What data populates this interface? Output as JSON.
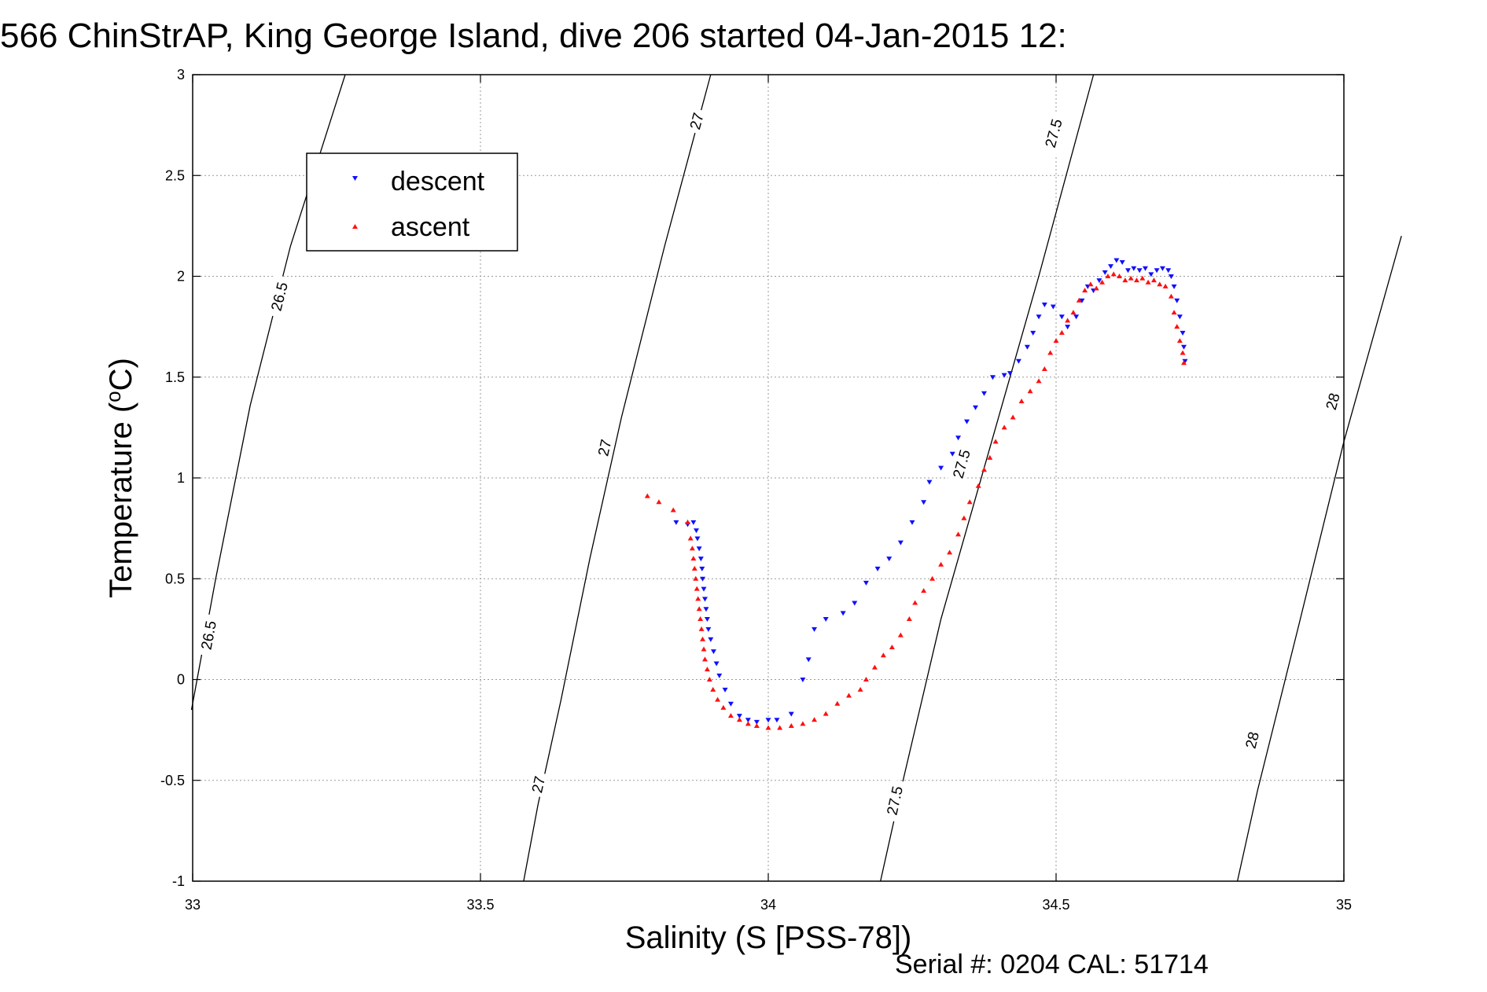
{
  "chart_data": {
    "type": "scatter",
    "title": "566 ChinStrAP, King George Island, dive 206 started 04-Jan-2015 12:",
    "xlabel": "Salinity (S [PSS-78])",
    "ylabel_prefix": "Temperature (",
    "ylabel_degree": "o",
    "ylabel_suffix": "C)",
    "xlim": [
      33,
      35
    ],
    "ylim": [
      -1,
      3
    ],
    "xticks": [
      33,
      33.5,
      34,
      34.5,
      35
    ],
    "xtick_labels": [
      "33",
      "33.5",
      "34",
      "34.5",
      "35"
    ],
    "yticks": [
      -1,
      -0.5,
      0,
      0.5,
      1,
      1.5,
      2,
      2.5,
      3
    ],
    "ytick_labels": [
      "-1",
      "-0.5",
      "0",
      "0.5",
      "1",
      "1.5",
      "2",
      "2.5",
      "3"
    ],
    "grid": true,
    "legend_position": "top-left",
    "colors": {
      "descent": "#1010ff",
      "ascent": "#ff1010",
      "isopycnal": "#000000"
    },
    "isopycnals": [
      {
        "sigma": 26.5,
        "points": [
          [
            32.998,
            -0.15
          ],
          [
            33.04,
            0.5
          ],
          [
            33.1,
            1.36
          ],
          [
            33.17,
            2.15
          ],
          [
            33.265,
            3.0
          ]
        ],
        "labels": [
          {
            "label": "26.5",
            "x": 33.027,
            "y": 0.22
          },
          {
            "label": "26.5",
            "x": 33.15,
            "y": 1.9
          }
        ]
      },
      {
        "sigma": 27,
        "points": [
          [
            33.575,
            -1.0
          ],
          [
            33.6,
            -0.62
          ],
          [
            33.64,
            -0.1
          ],
          [
            33.69,
            0.6
          ],
          [
            33.745,
            1.3
          ],
          [
            33.82,
            2.15
          ],
          [
            33.9,
            3.0
          ]
        ],
        "labels": [
          {
            "label": "27",
            "x": 33.6,
            "y": -0.52
          },
          {
            "label": "27",
            "x": 33.715,
            "y": 1.15
          },
          {
            "label": "27",
            "x": 33.875,
            "y": 2.77
          }
        ]
      },
      {
        "sigma": 27.5,
        "points": [
          [
            34.195,
            -1.0
          ],
          [
            34.23,
            -0.55
          ],
          [
            34.3,
            0.3
          ],
          [
            34.38,
            1.1
          ],
          [
            34.47,
            2.0
          ],
          [
            34.565,
            3.0
          ]
        ],
        "labels": [
          {
            "label": "27.5",
            "x": 34.219,
            "y": -0.6
          },
          {
            "label": "27.5",
            "x": 34.335,
            "y": 1.07
          },
          {
            "label": "27.5",
            "x": 34.495,
            "y": 2.71
          }
        ]
      },
      {
        "sigma": 28,
        "points": [
          [
            34.815,
            -1.0
          ],
          [
            34.85,
            -0.55
          ],
          [
            34.92,
            0.25
          ],
          [
            35.0,
            1.18
          ],
          [
            35.1,
            2.2
          ]
        ],
        "labels": [
          {
            "label": "28",
            "x": 34.84,
            "y": -0.3
          },
          {
            "label": "28",
            "x": 34.98,
            "y": 1.38
          }
        ]
      }
    ],
    "series": [
      {
        "name": "descent",
        "marker": "triangle-down",
        "points": [
          [
            33.84,
            0.78
          ],
          [
            33.86,
            0.77
          ],
          [
            33.87,
            0.78
          ],
          [
            33.875,
            0.74
          ],
          [
            33.877,
            0.7
          ],
          [
            33.88,
            0.65
          ],
          [
            33.883,
            0.6
          ],
          [
            33.885,
            0.55
          ],
          [
            33.886,
            0.5
          ],
          [
            33.888,
            0.45
          ],
          [
            33.89,
            0.4
          ],
          [
            33.892,
            0.35
          ],
          [
            33.894,
            0.3
          ],
          [
            33.896,
            0.25
          ],
          [
            33.9,
            0.2
          ],
          [
            33.905,
            0.14
          ],
          [
            33.91,
            0.08
          ],
          [
            33.915,
            0.02
          ],
          [
            33.925,
            -0.05
          ],
          [
            33.935,
            -0.12
          ],
          [
            33.95,
            -0.18
          ],
          [
            33.965,
            -0.2
          ],
          [
            33.98,
            -0.21
          ],
          [
            34.0,
            -0.2
          ],
          [
            34.015,
            -0.2
          ],
          [
            34.04,
            -0.17
          ],
          [
            34.06,
            0.0
          ],
          [
            34.07,
            0.1
          ],
          [
            34.08,
            0.25
          ],
          [
            34.1,
            0.3
          ],
          [
            34.13,
            0.33
          ],
          [
            34.15,
            0.38
          ],
          [
            34.17,
            0.48
          ],
          [
            34.19,
            0.55
          ],
          [
            34.21,
            0.6
          ],
          [
            34.23,
            0.68
          ],
          [
            34.25,
            0.78
          ],
          [
            34.27,
            0.88
          ],
          [
            34.28,
            0.98
          ],
          [
            34.3,
            1.05
          ],
          [
            34.32,
            1.12
          ],
          [
            34.33,
            1.2
          ],
          [
            34.345,
            1.28
          ],
          [
            34.36,
            1.35
          ],
          [
            34.375,
            1.42
          ],
          [
            34.39,
            1.5
          ],
          [
            34.41,
            1.51
          ],
          [
            34.42,
            1.52
          ],
          [
            34.435,
            1.58
          ],
          [
            34.45,
            1.65
          ],
          [
            34.46,
            1.72
          ],
          [
            34.47,
            1.8
          ],
          [
            34.48,
            1.86
          ],
          [
            34.495,
            1.85
          ],
          [
            34.51,
            1.8
          ],
          [
            34.52,
            1.75
          ],
          [
            34.535,
            1.8
          ],
          [
            34.545,
            1.88
          ],
          [
            34.555,
            1.95
          ],
          [
            34.565,
            1.93
          ],
          [
            34.575,
            1.98
          ],
          [
            34.585,
            2.02
          ],
          [
            34.595,
            2.05
          ],
          [
            34.605,
            2.08
          ],
          [
            34.615,
            2.07
          ],
          [
            34.625,
            2.03
          ],
          [
            34.635,
            2.04
          ],
          [
            34.645,
            2.03
          ],
          [
            34.655,
            2.04
          ],
          [
            34.665,
            2.01
          ],
          [
            34.675,
            2.03
          ],
          [
            34.685,
            2.04
          ],
          [
            34.695,
            2.03
          ],
          [
            34.7,
            2.0
          ],
          [
            34.705,
            1.95
          ],
          [
            34.71,
            1.88
          ],
          [
            34.715,
            1.8
          ],
          [
            34.72,
            1.72
          ],
          [
            34.722,
            1.65
          ],
          [
            34.724,
            1.58
          ]
        ]
      },
      {
        "name": "ascent",
        "marker": "triangle-up",
        "points": [
          [
            33.79,
            0.91
          ],
          [
            33.81,
            0.88
          ],
          [
            33.835,
            0.84
          ],
          [
            33.86,
            0.78
          ],
          [
            33.865,
            0.7
          ],
          [
            33.868,
            0.65
          ],
          [
            33.87,
            0.6
          ],
          [
            33.872,
            0.55
          ],
          [
            33.874,
            0.5
          ],
          [
            33.876,
            0.45
          ],
          [
            33.878,
            0.4
          ],
          [
            33.88,
            0.35
          ],
          [
            33.882,
            0.3
          ],
          [
            33.884,
            0.25
          ],
          [
            33.886,
            0.2
          ],
          [
            33.888,
            0.15
          ],
          [
            33.89,
            0.1
          ],
          [
            33.894,
            0.05
          ],
          [
            33.898,
            0.0
          ],
          [
            33.904,
            -0.05
          ],
          [
            33.912,
            -0.1
          ],
          [
            33.922,
            -0.14
          ],
          [
            33.935,
            -0.18
          ],
          [
            33.95,
            -0.2
          ],
          [
            33.965,
            -0.22
          ],
          [
            33.98,
            -0.23
          ],
          [
            34.0,
            -0.24
          ],
          [
            34.02,
            -0.24
          ],
          [
            34.04,
            -0.23
          ],
          [
            34.06,
            -0.22
          ],
          [
            34.08,
            -0.2
          ],
          [
            34.1,
            -0.17
          ],
          [
            34.12,
            -0.12
          ],
          [
            34.14,
            -0.08
          ],
          [
            34.16,
            -0.05
          ],
          [
            34.17,
            0.0
          ],
          [
            34.185,
            0.06
          ],
          [
            34.2,
            0.12
          ],
          [
            34.215,
            0.16
          ],
          [
            34.23,
            0.22
          ],
          [
            34.245,
            0.3
          ],
          [
            34.255,
            0.38
          ],
          [
            34.27,
            0.44
          ],
          [
            34.285,
            0.5
          ],
          [
            34.3,
            0.57
          ],
          [
            34.315,
            0.63
          ],
          [
            34.33,
            0.72
          ],
          [
            34.34,
            0.8
          ],
          [
            34.35,
            0.88
          ],
          [
            34.365,
            0.96
          ],
          [
            34.375,
            1.04
          ],
          [
            34.385,
            1.1
          ],
          [
            34.395,
            1.18
          ],
          [
            34.41,
            1.25
          ],
          [
            34.425,
            1.3
          ],
          [
            34.44,
            1.38
          ],
          [
            34.455,
            1.43
          ],
          [
            34.47,
            1.48
          ],
          [
            34.48,
            1.54
          ],
          [
            34.49,
            1.62
          ],
          [
            34.5,
            1.68
          ],
          [
            34.51,
            1.72
          ],
          [
            34.52,
            1.78
          ],
          [
            34.53,
            1.82
          ],
          [
            34.54,
            1.88
          ],
          [
            34.55,
            1.93
          ],
          [
            34.56,
            1.96
          ],
          [
            34.57,
            1.94
          ],
          [
            34.58,
            1.97
          ],
          [
            34.59,
            2.0
          ],
          [
            34.6,
            2.01
          ],
          [
            34.61,
            2.0
          ],
          [
            34.62,
            1.98
          ],
          [
            34.63,
            1.99
          ],
          [
            34.64,
            1.98
          ],
          [
            34.65,
            1.99
          ],
          [
            34.66,
            1.97
          ],
          [
            34.67,
            1.98
          ],
          [
            34.68,
            1.96
          ],
          [
            34.69,
            1.95
          ],
          [
            34.7,
            1.9
          ],
          [
            34.705,
            1.82
          ],
          [
            34.71,
            1.75
          ],
          [
            34.715,
            1.68
          ],
          [
            34.72,
            1.62
          ],
          [
            34.722,
            1.57
          ]
        ]
      }
    ]
  },
  "legend": {
    "items": [
      "descent",
      "ascent"
    ]
  },
  "footer": {
    "serial": "Serial #: 0204  CAL: 51714"
  }
}
